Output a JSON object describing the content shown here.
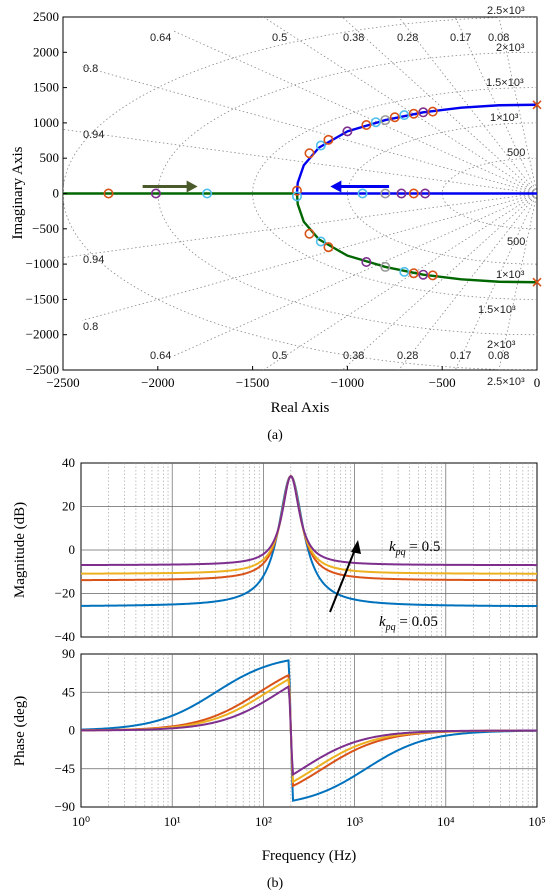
{
  "chart_data": [
    {
      "panel": "(a)",
      "type": "scatter",
      "caption": "(a)",
      "xlabel": "Real Axis",
      "ylabel": "Imaginary Axis",
      "xlim": [
        -2500,
        0
      ],
      "ylim": [
        -2500,
        2500
      ],
      "xticks": [
        -2500,
        -2000,
        -1500,
        -1000,
        -500,
        0
      ],
      "yticks": [
        2500,
        2000,
        1500,
        1000,
        500,
        0,
        -500,
        -1000,
        -1500,
        -2000,
        -2500
      ],
      "grid": "s-plane (damping ratio / natural frequency)",
      "damping_labels": [
        "0.64",
        "0.5",
        "0.38",
        "0.28",
        "0.17",
        "0.08",
        "0.8",
        "0.94"
      ],
      "freq_labels": [
        "2.5×10³",
        "2×10³",
        "1.5×10³",
        "1×10³",
        "500"
      ],
      "branches": [
        {
          "color": "#0000ee",
          "points": [
            [
              0,
              1257
            ],
            [
              -200,
              1250
            ],
            [
              -400,
              1215
            ],
            [
              -600,
              1150
            ],
            [
              -800,
              1040
            ],
            [
              -1000,
              880
            ],
            [
              -1150,
              650
            ],
            [
              -1230,
              400
            ],
            [
              -1262,
              150
            ],
            [
              -1266,
              0
            ]
          ]
        },
        {
          "color": "#006600",
          "points": [
            [
              0,
              -1257
            ],
            [
              -200,
              -1250
            ],
            [
              -400,
              -1215
            ],
            [
              -600,
              -1150
            ],
            [
              -800,
              -1040
            ],
            [
              -1000,
              -880
            ],
            [
              -1150,
              -650
            ],
            [
              -1230,
              -400
            ],
            [
              -1262,
              -150
            ],
            [
              -1266,
              0
            ]
          ]
        },
        {
          "color": "#0000ee",
          "points": [
            [
              -1266,
              0
            ],
            [
              -600,
              0
            ],
            [
              0,
              0
            ]
          ]
        },
        {
          "color": "#006600",
          "points": [
            [
              -1266,
              0
            ],
            [
              -2500,
              0
            ]
          ]
        }
      ],
      "poles": [
        {
          "x": -2260,
          "y": 0,
          "color": "#d95319"
        },
        {
          "x": -2010,
          "y": 0,
          "color": "#7e2f8e"
        },
        {
          "x": -1740,
          "y": 0,
          "color": "#4dbeee"
        },
        {
          "x": -920,
          "y": 0,
          "color": "#4dbeee"
        },
        {
          "x": -800,
          "y": 0,
          "color": "#999999"
        },
        {
          "x": -715,
          "y": 0,
          "color": "#7e2f8e"
        },
        {
          "x": -650,
          "y": 0,
          "color": "#d95319"
        },
        {
          "x": -590,
          "y": 0,
          "color": "#7e2f8e"
        },
        {
          "x": -1266,
          "y": 40,
          "color": "#d95319"
        },
        {
          "x": -1200,
          "y": 570,
          "color": "#d95319"
        },
        {
          "x": -1140,
          "y": 680,
          "color": "#4dbeee"
        },
        {
          "x": -1100,
          "y": 760,
          "color": "#d95319"
        },
        {
          "x": -1000,
          "y": 880,
          "color": "#7e2f8e"
        },
        {
          "x": -900,
          "y": 970,
          "color": "#d95319"
        },
        {
          "x": -850,
          "y": 1010,
          "color": "#4dbeee"
        },
        {
          "x": -800,
          "y": 1040,
          "color": "#999999"
        },
        {
          "x": -750,
          "y": 1080,
          "color": "#d95319"
        },
        {
          "x": -700,
          "y": 1110,
          "color": "#4dbeee"
        },
        {
          "x": -650,
          "y": 1130,
          "color": "#d95319"
        },
        {
          "x": -600,
          "y": 1150,
          "color": "#7e2f8e"
        },
        {
          "x": -550,
          "y": 1160,
          "color": "#d95319"
        },
        {
          "x": -1200,
          "y": -570,
          "color": "#d95319"
        },
        {
          "x": -1140,
          "y": -680,
          "color": "#4dbeee"
        },
        {
          "x": -1100,
          "y": -760,
          "color": "#d95319"
        },
        {
          "x": -900,
          "y": -970,
          "color": "#7e2f8e"
        },
        {
          "x": -800,
          "y": -1040,
          "color": "#999999"
        },
        {
          "x": -700,
          "y": -1110,
          "color": "#4dbeee"
        },
        {
          "x": -650,
          "y": -1130,
          "color": "#d95319"
        },
        {
          "x": -600,
          "y": -1150,
          "color": "#7e2f8e"
        },
        {
          "x": -550,
          "y": -1160,
          "color": "#d95319"
        },
        {
          "x": -1266,
          "y": -40,
          "color": "#4dbeee"
        }
      ],
      "x_markers": [
        {
          "x": 0,
          "y": 1257,
          "color": "#d95319"
        },
        {
          "x": 0,
          "y": -1257,
          "color": "#d95319"
        }
      ],
      "arrows": [
        {
          "from": [
            -2080,
            100
          ],
          "to": [
            -1790,
            100
          ],
          "color": "#4a5a2a"
        },
        {
          "from": [
            -780,
            100
          ],
          "to": [
            -1090,
            100
          ],
          "color": "#0000ee"
        }
      ]
    },
    {
      "panel": "(b)",
      "type": "line",
      "caption": "(b)",
      "xlabel": "Frequency  (Hz)",
      "xscale": "log",
      "xlim": [
        1,
        100000
      ],
      "xticks": [
        "10⁰",
        "10¹",
        "10²",
        "10³",
        "10⁴",
        "10⁵"
      ],
      "magnitude": {
        "ylabel": "Magnitude (dB)",
        "ylim": [
          -40,
          40
        ],
        "yticks": [
          40,
          20,
          0,
          -20,
          -40
        ],
        "series": [
          {
            "color": "#0072bd",
            "low_dB": -26,
            "peak_dB": 34
          },
          {
            "color": "#d95319",
            "low_dB": -14,
            "peak_dB": 34
          },
          {
            "color": "#edb120",
            "low_dB": -11,
            "peak_dB": 34
          },
          {
            "color": "#7e2f8e",
            "low_dB": -7,
            "peak_dB": 34
          }
        ],
        "annotations": [
          "k_pq = 0.5",
          "k_pq = 0.05"
        ]
      },
      "phase": {
        "ylabel": "Phase (deg)",
        "ylim": [
          -90,
          90
        ],
        "yticks": [
          90,
          45,
          0,
          -45,
          -90
        ],
        "series": [
          {
            "color": "#0072bd",
            "mid_hz": 30
          },
          {
            "color": "#d95319",
            "mid_hz": 90
          },
          {
            "color": "#edb120",
            "mid_hz": 110
          },
          {
            "color": "#7e2f8e",
            "mid_hz": 150
          }
        ],
        "resonance_hz": 200
      }
    }
  ]
}
